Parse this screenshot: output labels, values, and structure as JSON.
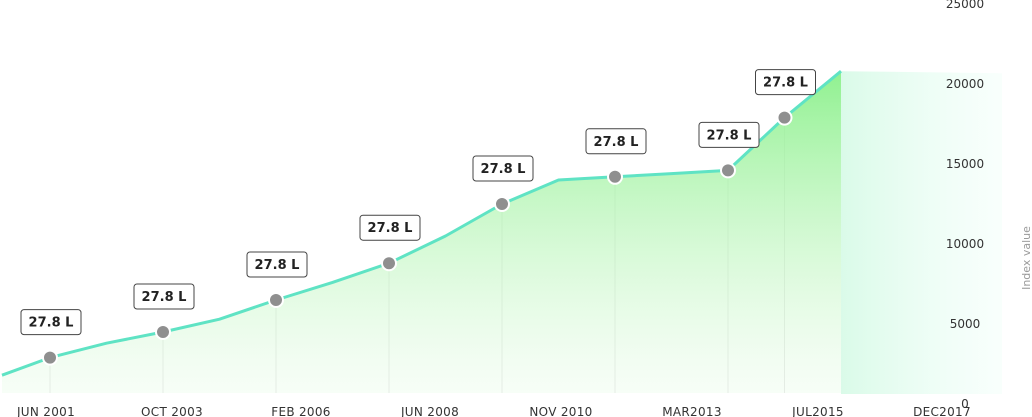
{
  "chart_data": {
    "type": "area",
    "x": [
      "",
      "JUN 2001",
      "",
      "OCT 2003",
      "",
      "FEB 2006",
      "",
      "JUN 2008",
      "",
      "NOV 2010",
      "",
      "MAR2013",
      "",
      "JUL2015",
      "",
      "DEC2017"
    ],
    "values": [
      1800,
      2900,
      3800,
      4500,
      5300,
      6500,
      7600,
      8800,
      10500,
      12500,
      14000,
      14200,
      14400,
      14600,
      17900,
      20800
    ],
    "marker_indices": [
      1,
      3,
      5,
      7,
      9,
      11,
      13,
      14
    ],
    "marker_labels": [
      "27.8 L",
      "27.8 L",
      "27.8 L",
      "27.8 L",
      "27.8 L",
      "27.8 L",
      "27.8 L",
      "27.8 L"
    ],
    "x_tick_labels": [
      "JUN 2001",
      "OCT 2003",
      "FEB 2006",
      "JUN 2008",
      "NOV 2010",
      "MAR2013",
      "JUL2015",
      "DEC2017"
    ],
    "y_ticks": [
      "0",
      "5000",
      "10000",
      "15000",
      "20000",
      "25000"
    ],
    "ylim": [
      0,
      25000
    ],
    "ylabel": "Index value",
    "title": "",
    "xlabel": "",
    "grid": "vertical at markers",
    "line_color": "#5fe3c4",
    "fill_color": "#8af08a"
  }
}
